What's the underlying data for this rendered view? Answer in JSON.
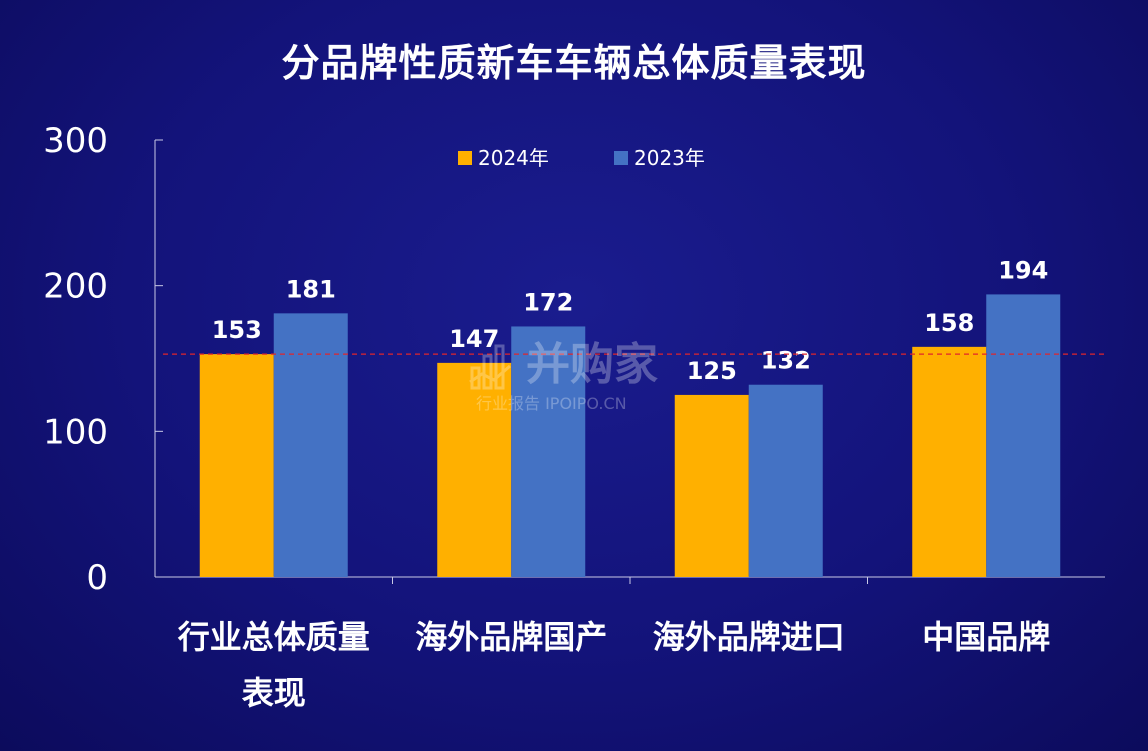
{
  "chart_data": {
    "type": "bar",
    "title": "分品牌性质新车车辆总体质量表现",
    "categories": [
      "行业总体质量表现",
      "海外品牌国产",
      "海外品牌进口",
      "中国品牌"
    ],
    "series": [
      {
        "name": "2024年",
        "values": [
          153,
          147,
          125,
          158
        ],
        "color": "#FFB000"
      },
      {
        "name": "2023年",
        "values": [
          181,
          172,
          132,
          194
        ],
        "color": "#4472C4"
      }
    ],
    "ylim": [
      0,
      300
    ],
    "yticks": [
      "0",
      "100",
      "200",
      "300"
    ],
    "reference_line": {
      "value": 153,
      "color": "#E0252B",
      "style": "dashed"
    },
    "legend_position": "top-center",
    "grid": false
  },
  "watermark": {
    "name": "并购家",
    "subtitle": "行业报告 IPOIPO.CN"
  }
}
